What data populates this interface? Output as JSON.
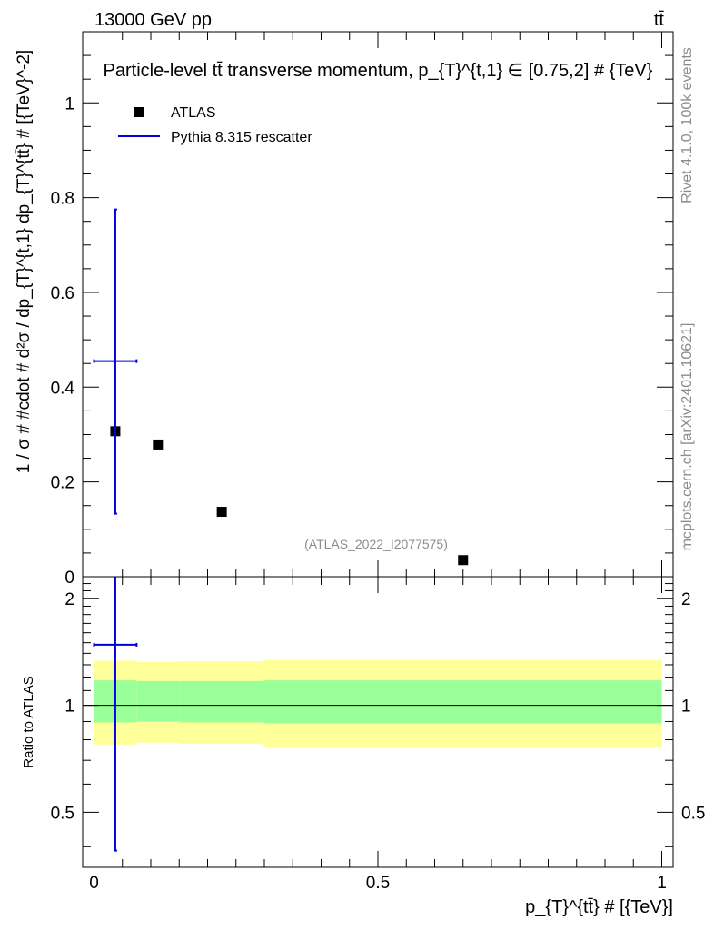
{
  "header": {
    "beam_label": "13000 GeV pp",
    "process_label": "tt̄"
  },
  "side_labels": {
    "rivet": "Rivet 4.1.0,  100k events",
    "source": "mcplots.cern.ch [arXiv:2401.10621]"
  },
  "chart_data": [
    {
      "id": "main",
      "type": "scatter",
      "title": "Particle-level tt̄ transverse momentum, p_{T}^{t,1} ∈ [0.75,2] # {TeV}",
      "watermark": "(ATLAS_2022_I2077575)",
      "ylabel": "1 / σ # #cdot # d²σ / dp_{T}^{t,1} dp_{T}^{tt̄} # [{TeV}^-2]",
      "xlim": [
        -0.02,
        1.02
      ],
      "ylim": [
        0,
        1.15
      ],
      "yticks": [
        0,
        0.2,
        0.4,
        0.6,
        0.8,
        1
      ],
      "ytick_labels": [
        "0",
        "0.2",
        "0.4",
        "0.6",
        "0.8",
        "1"
      ],
      "legend": {
        "position": "top-left",
        "entries": [
          "ATLAS",
          "Pythia 8.315 rescatter"
        ]
      },
      "series": [
        {
          "name": "ATLAS",
          "marker": "square",
          "color": "#000000",
          "x": [
            0.0375,
            0.1125,
            0.225,
            0.65
          ],
          "y": [
            0.307,
            0.279,
            0.137,
            0.035
          ]
        },
        {
          "name": "Pythia 8.315 rescatter",
          "marker": "errorbar",
          "color": "#0000dd",
          "x": [
            0.0375
          ],
          "x_low": [
            0.0
          ],
          "x_high": [
            0.075
          ],
          "y": [
            0.455
          ],
          "y_low": [
            0.133
          ],
          "y_high": [
            0.775
          ]
        }
      ]
    },
    {
      "id": "ratio",
      "type": "scatter",
      "ylabel": "Ratio to ATLAS",
      "xlabel": "p_{T}^{tt̄} # [{TeV}]",
      "xlim": [
        -0.02,
        1.02
      ],
      "ylim": [
        0.35,
        2.3
      ],
      "yticks": [
        0.5,
        1,
        2
      ],
      "ytick_labels": [
        "0.5",
        "1",
        "2"
      ],
      "xticks": [
        0,
        0.5,
        1
      ],
      "xtick_labels": [
        "0",
        "0.5",
        "1"
      ],
      "reference_line": 1,
      "bands": [
        {
          "x0": 0.0,
          "x1": 0.075,
          "stat_low": 0.895,
          "stat_high": 1.175,
          "tot_low": 0.775,
          "tot_high": 1.335
        },
        {
          "x0": 0.075,
          "x1": 0.15,
          "stat_low": 0.9,
          "stat_high": 1.17,
          "tot_low": 0.785,
          "tot_high": 1.325
        },
        {
          "x0": 0.15,
          "x1": 0.3,
          "stat_low": 0.895,
          "stat_high": 1.17,
          "tot_low": 0.78,
          "tot_high": 1.33
        },
        {
          "x0": 0.3,
          "x1": 1.0,
          "stat_low": 0.89,
          "stat_high": 1.175,
          "tot_low": 0.765,
          "tot_high": 1.34
        }
      ],
      "band_colors": {
        "stat": "#99ff99",
        "total": "#ffff99"
      },
      "series": [
        {
          "name": "Pythia 8.315 rescatter",
          "color": "#0000dd",
          "x": [
            0.0375
          ],
          "x_low": [
            0.0
          ],
          "x_high": [
            0.075
          ],
          "y": [
            1.48
          ],
          "y_low": [
            0.39
          ],
          "y_high": [
            2.3
          ]
        }
      ]
    }
  ]
}
